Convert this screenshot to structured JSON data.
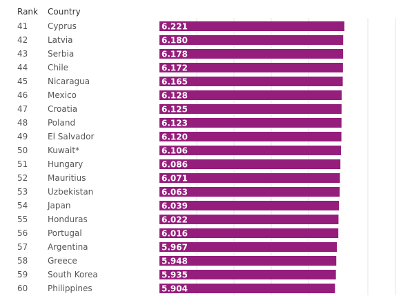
{
  "headers": {
    "rank": "Rank",
    "country": "Country"
  },
  "colors": {
    "bar": "#951d7c",
    "grid": "#e6e6e6",
    "text": "#555555"
  },
  "chart_data": {
    "type": "bar",
    "orientation": "horizontal",
    "title": "",
    "xlabel": "",
    "ylabel": "",
    "xlim": [
      0,
      6.221
    ],
    "grid": true,
    "ranks": [
      41,
      42,
      43,
      44,
      45,
      46,
      47,
      48,
      49,
      50,
      51,
      52,
      53,
      54,
      55,
      56,
      57,
      58,
      59,
      60
    ],
    "categories": [
      "Cyprus",
      "Latvia",
      "Serbia",
      "Chile",
      "Nicaragua",
      "Mexico",
      "Croatia",
      "Poland",
      "El Salvador",
      "Kuwait*",
      "Hungary",
      "Mauritius",
      "Uzbekistan",
      "Japan",
      "Honduras",
      "Portugal",
      "Argentina",
      "Greece",
      "South Korea",
      "Philippines"
    ],
    "values": [
      6.221,
      6.18,
      6.178,
      6.172,
      6.165,
      6.128,
      6.125,
      6.123,
      6.12,
      6.106,
      6.086,
      6.071,
      6.063,
      6.039,
      6.022,
      6.016,
      5.967,
      5.948,
      5.935,
      5.904
    ],
    "value_labels": [
      "6.221",
      "6.180",
      "6.178",
      "6.172",
      "6.165",
      "6.128",
      "6.125",
      "6.123",
      "6.120",
      "6.106",
      "6.086",
      "6.071",
      "6.063",
      "6.039",
      "6.022",
      "6.016",
      "5.967",
      "5.948",
      "5.935",
      "5.904"
    ]
  }
}
